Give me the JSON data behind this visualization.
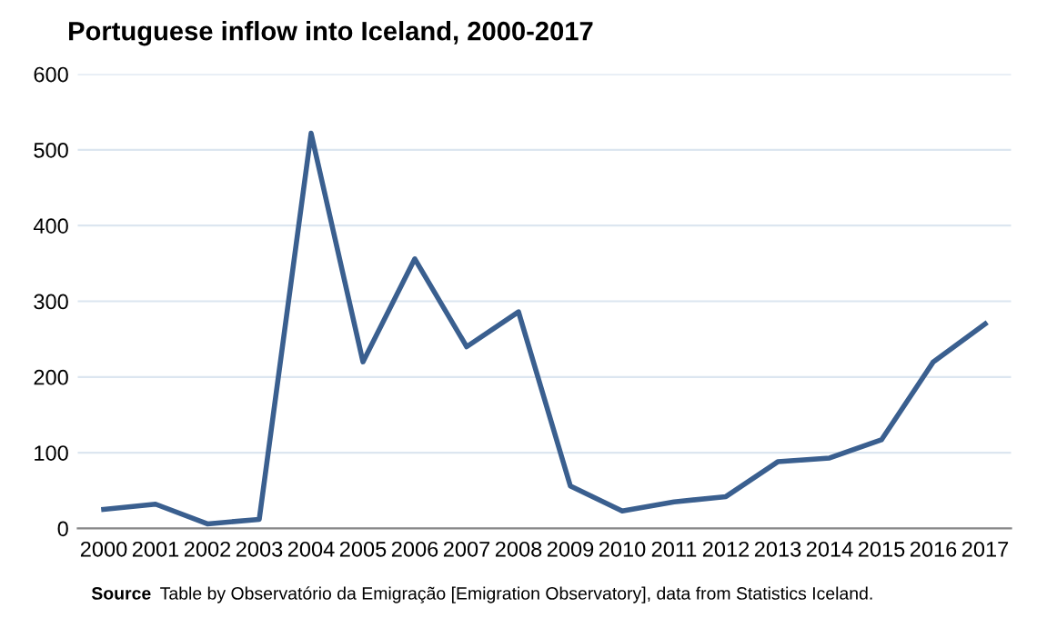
{
  "chart_data": {
    "type": "line",
    "title": "Portuguese inflow into Iceland, 2000-2017",
    "categories": [
      "2000",
      "2001",
      "2002",
      "2003",
      "2004",
      "2005",
      "2006",
      "2007",
      "2008",
      "2009",
      "2010",
      "2011",
      "2012",
      "2013",
      "2014",
      "2015",
      "2016",
      "2017"
    ],
    "series": [
      {
        "color": "#3a5f8f",
        "values": [
          25,
          32,
          6,
          12,
          522,
          220,
          356,
          240,
          286,
          56,
          23,
          35,
          42,
          88,
          93,
          117,
          220,
          270
        ]
      }
    ],
    "ylim": [
      0,
      600
    ],
    "yticks": [
      0,
      100,
      200,
      300,
      400,
      500,
      600
    ],
    "grid": "y",
    "marker": "none",
    "line_style": "solid",
    "annotations": [
      "Source",
      "Table by Observatório da Emigração [Emigration Observatory], data from Statistics Iceland."
    ]
  }
}
